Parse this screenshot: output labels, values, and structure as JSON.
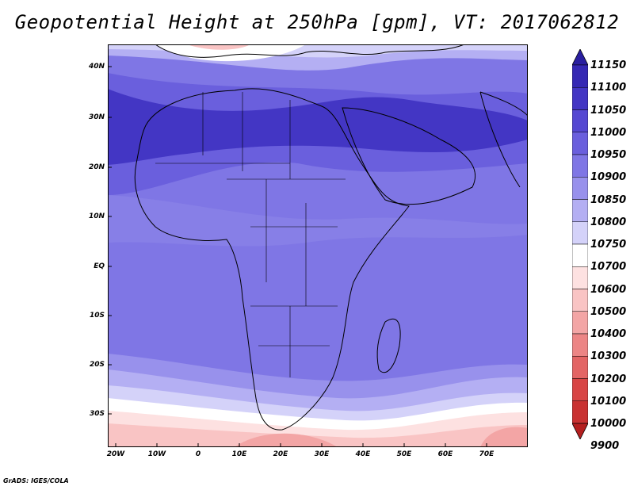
{
  "title": "Geopotential Height at 250hPa [gpm], VT: 2017062812",
  "footer": "GrADS: IGES/COLA",
  "y_axis": [
    "40N",
    "30N",
    "20N",
    "10N",
    "EQ",
    "10S",
    "20S",
    "30S"
  ],
  "x_axis": [
    "20W",
    "10W",
    "0",
    "10E",
    "20E",
    "30E",
    "40E",
    "50E",
    "60E",
    "70E"
  ],
  "colorbar": {
    "labels": [
      "11150",
      "11100",
      "11050",
      "11000",
      "10950",
      "10900",
      "10850",
      "10800",
      "10750",
      "10700",
      "10600",
      "10500",
      "10400",
      "10300",
      "10200",
      "10100",
      "10000",
      "9900"
    ],
    "colors": [
      "#2a1fa0",
      "#3528b4",
      "#4336c4",
      "#5548d2",
      "#6a5fdd",
      "#7f76e5",
      "#9891ec",
      "#b4aff3",
      "#d4d2f9",
      "#ffffff",
      "#fde1e1",
      "#f9c4c4",
      "#f3a5a5",
      "#ec8585",
      "#e36565",
      "#d84545",
      "#c93232",
      "#b41f1f"
    ]
  },
  "map": {
    "colors": {
      "band_11050": "#4336c4",
      "band_10950": "#6a5fdd",
      "band_10900": "#7f76e5",
      "band_10850": "#9891ec",
      "band_10800": "#b4aff3",
      "band_10750": "#d4d2f9",
      "band_10700": "#ffffff",
      "band_10600": "#fde1e1",
      "band_10500": "#f9c4c4",
      "band_10400": "#f3a5a5"
    }
  }
}
